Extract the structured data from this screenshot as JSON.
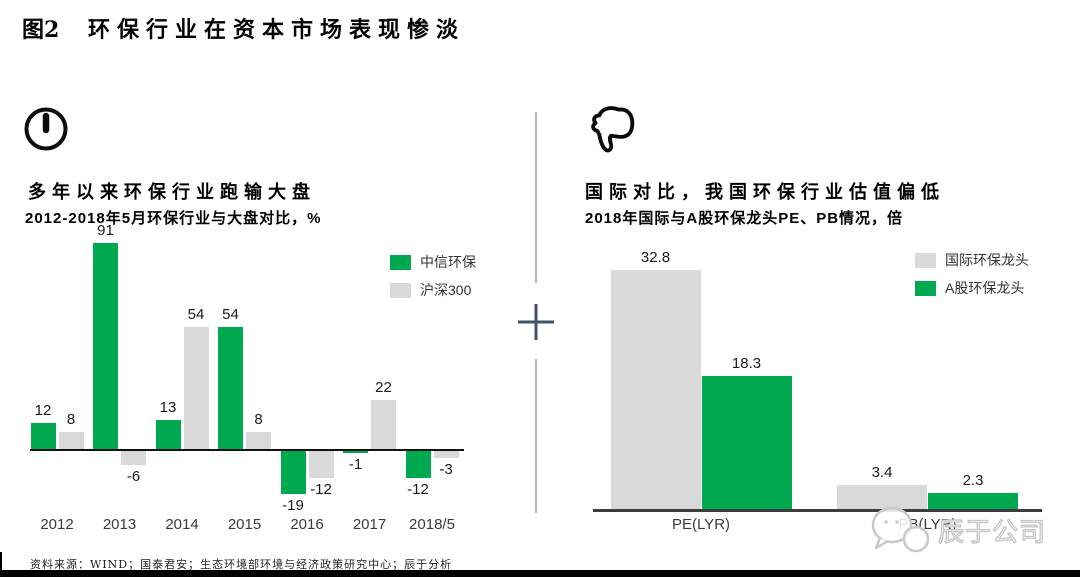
{
  "title": {
    "fig_label": "图2",
    "text": "环保行业在资本市场表现惨淡"
  },
  "panels": {
    "left": {
      "icon": "clock-icon",
      "heading": "多年以来环保行业跑输大盘",
      "subtitle": "2012-2018年5月环保行业与大盘对比，%"
    },
    "right": {
      "icon": "thumbs-down-icon",
      "heading": "国际对比，我国环保行业估值偏低",
      "subtitle": "2018年国际与A股环保龙头PE、PB情况，倍"
    }
  },
  "chart_data": [
    {
      "type": "bar",
      "title": "多年以来环保行业跑输大盘",
      "subtitle": "2012-2018年5月环保行业与大盘对比，%",
      "categories": [
        "2012",
        "2013",
        "2014",
        "2015",
        "2016",
        "2017",
        "2018/5"
      ],
      "series": [
        {
          "name": "中信环保",
          "color": "#00a84f",
          "values": [
            12,
            91,
            13,
            54,
            -19,
            -1,
            -12
          ]
        },
        {
          "name": "沪深300",
          "color": "#d9d9d9",
          "values": [
            8,
            -6,
            54,
            8,
            -12,
            22,
            -3
          ]
        }
      ],
      "ylabel": "%",
      "ylim": [
        -19,
        91
      ],
      "grid": false,
      "legend_position": "top-right",
      "data_labels": true
    },
    {
      "type": "bar",
      "title": "国际对比，我国环保行业估值偏低",
      "subtitle": "2018年国际与A股环保龙头PE、PB情况，倍",
      "categories": [
        "PE(LYR)",
        "PB(LYR)"
      ],
      "series": [
        {
          "name": "国际环保龙头",
          "color": "#d9d9d9",
          "values": [
            32.8,
            3.4
          ]
        },
        {
          "name": "A股环保龙头",
          "color": "#00a84f",
          "values": [
            18.3,
            2.3
          ]
        }
      ],
      "ylabel": "倍",
      "ylim": [
        0,
        32.8
      ],
      "grid": false,
      "legend_position": "top-right",
      "data_labels": true
    }
  ],
  "divider": {
    "plus_symbol": "+"
  },
  "watermark": {
    "icon": "wechat-bubbles-icon",
    "text": "辰于公司"
  },
  "footer": {
    "source": "资料来源：WIND；国泰君安；生态环境部环境与经济政策研究中心；辰于分析"
  },
  "colors": {
    "green": "#00a84f",
    "gray": "#d9d9d9",
    "axis_left": "#111111",
    "axis_right": "#3c3c3c",
    "plus": "#41536a",
    "divider_line": "#b3b3b3",
    "black_bar": "#000000"
  }
}
